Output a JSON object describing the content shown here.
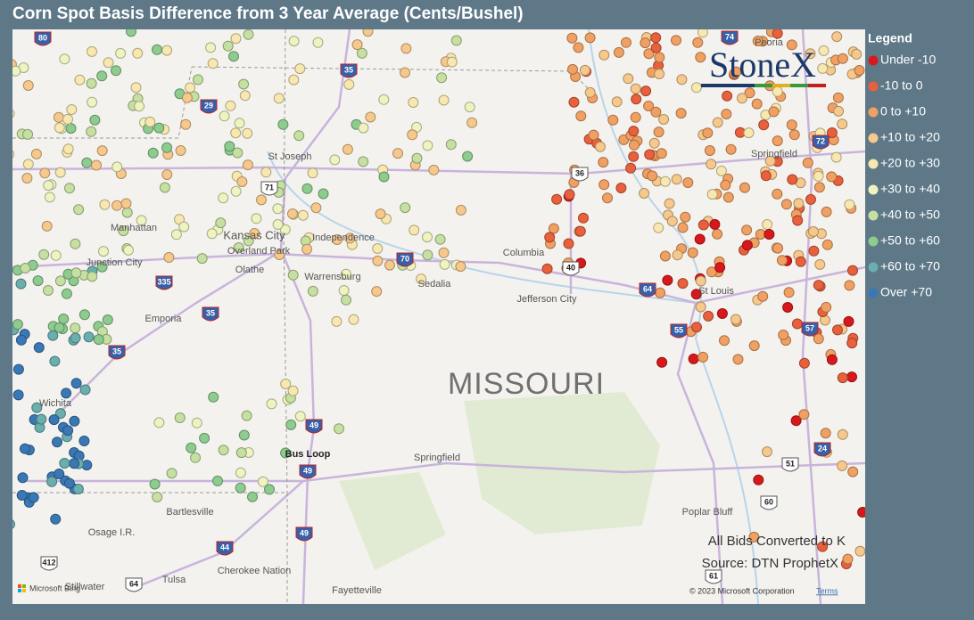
{
  "header": {
    "title": "Corn Spot Basis Difference from 3 Year Average (Cents/Bushel)"
  },
  "legend": {
    "title": "Legend",
    "items": [
      {
        "label": "Under -10",
        "color": "#d7191c"
      },
      {
        "label": "-10 to 0",
        "color": "#e8603c"
      },
      {
        "label": "0 to +10",
        "color": "#f0a062"
      },
      {
        "label": "+10 to +20",
        "color": "#f6c88c"
      },
      {
        "label": "+20 to +30",
        "color": "#f8e8b0"
      },
      {
        "label": "+30 to +40",
        "color": "#eef3c0"
      },
      {
        "label": "+40 to +50",
        "color": "#c5e0a0"
      },
      {
        "label": "+50 to +60",
        "color": "#8dcb8f"
      },
      {
        "label": "+60 to +70",
        "color": "#6aaeae"
      },
      {
        "label": "Over +70",
        "color": "#3a78b5"
      }
    ]
  },
  "map": {
    "state_label": "MISSOURI",
    "places": [
      "Manhattan",
      "Junction City",
      "Kansas City",
      "Overland Park",
      "Olathe",
      "Independence",
      "Warrensburg",
      "Sedalia",
      "Columbia",
      "Jefferson City",
      "St Joseph",
      "Emporia",
      "Wichita",
      "Springfield",
      "Bartlesville",
      "Osage I.R.",
      "Cherokee Nation",
      "Tulsa",
      "Stillwater",
      "Fayetteville",
      "Poplar Bluff",
      "Springfield",
      "St Louis",
      "Peoria",
      "Bus Loop"
    ],
    "shields": [
      "80",
      "35",
      "29",
      "71",
      "36",
      "70",
      "40",
      "64",
      "335",
      "35",
      "35",
      "55",
      "57",
      "49",
      "49",
      "49",
      "44",
      "412",
      "64",
      "51",
      "60",
      "61",
      "24",
      "72",
      "74"
    ],
    "logo": "StoneX",
    "notes": [
      "All Bids Converted to K",
      "Source: DTN ProphetX"
    ],
    "attribution": {
      "brand": "Microsoft Bing",
      "copyright": "© 2023 Microsoft Corporation",
      "terms": "Terms"
    }
  }
}
